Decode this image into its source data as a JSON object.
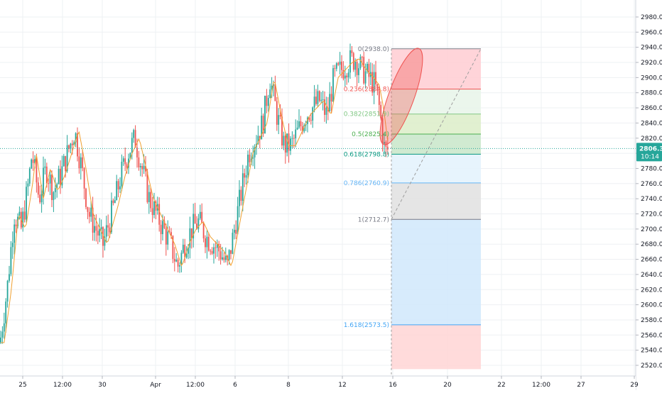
{
  "chart_data": {
    "type": "candlestick",
    "y_axis": {
      "range": [
        2510,
        2990
      ],
      "ticks": [
        2520,
        2540,
        2560,
        2580,
        2600,
        2620,
        2640,
        2660,
        2680,
        2700,
        2720,
        2740,
        2760,
        2780,
        2800,
        2820,
        2840,
        2860,
        2880,
        2900,
        2920,
        2940,
        2960,
        2980
      ],
      "tick_labels": [
        "2520.0",
        "2540.0",
        "2560.0",
        "2580.0",
        "2600.0",
        "2620.0",
        "2640.0",
        "2660.0",
        "2680.0",
        "2700.0",
        "2720.0",
        "2740.0",
        "2760.0",
        "2780.0",
        "2800.0",
        "2820.0",
        "2840.0",
        "2860.0",
        "2880.0",
        "2900.0",
        "2920.0",
        "2940.0",
        "2960.0",
        "2980.0"
      ]
    },
    "x_axis": {
      "labels": [
        "25",
        "12:00",
        "30",
        "Apr",
        "12:00",
        "6",
        "8",
        "12",
        "16",
        "20",
        "22",
        "12:00",
        "27",
        "29"
      ],
      "label_positions": [
        32,
        88,
        144,
        219,
        275,
        331,
        406,
        482,
        553,
        630,
        706,
        762,
        818,
        893
      ]
    },
    "price": {
      "last": "2806.3",
      "countdown": "10:14",
      "color": "#26a69a"
    },
    "colors": {
      "up": "#26a69a",
      "down": "#ef5350",
      "ma": "#f0a030"
    },
    "candles_summary": {
      "path_points": [
        [
          0,
          2550
        ],
        [
          10,
          2620
        ],
        [
          20,
          2720
        ],
        [
          30,
          2700
        ],
        [
          40,
          2760
        ],
        [
          45,
          2800
        ],
        [
          55,
          2740
        ],
        [
          65,
          2780
        ],
        [
          75,
          2750
        ],
        [
          85,
          2770
        ],
        [
          95,
          2800
        ],
        [
          105,
          2830
        ],
        [
          115,
          2780
        ],
        [
          125,
          2720
        ],
        [
          135,
          2700
        ],
        [
          145,
          2680
        ],
        [
          160,
          2730
        ],
        [
          170,
          2770
        ],
        [
          180,
          2800
        ],
        [
          190,
          2820
        ],
        [
          200,
          2780
        ],
        [
          210,
          2740
        ],
        [
          220,
          2720
        ],
        [
          230,
          2700
        ],
        [
          240,
          2680
        ],
        [
          250,
          2650
        ],
        [
          260,
          2680
        ],
        [
          270,
          2700
        ],
        [
          280,
          2710
        ],
        [
          290,
          2690
        ],
        [
          300,
          2680
        ],
        [
          310,
          2670
        ],
        [
          320,
          2650
        ],
        [
          330,
          2700
        ],
        [
          340,
          2750
        ],
        [
          350,
          2800
        ],
        [
          360,
          2820
        ],
        [
          370,
          2840
        ],
        [
          380,
          2900
        ],
        [
          390,
          2850
        ],
        [
          400,
          2810
        ],
        [
          410,
          2810
        ],
        [
          420,
          2830
        ],
        [
          430,
          2850
        ],
        [
          440,
          2860
        ],
        [
          450,
          2870
        ],
        [
          460,
          2850
        ],
        [
          470,
          2900
        ],
        [
          480,
          2910
        ],
        [
          490,
          2920
        ],
        [
          500,
          2925
        ],
        [
          510,
          2910
        ],
        [
          520,
          2900
        ],
        [
          528,
          2890
        ],
        [
          534,
          2860
        ],
        [
          538,
          2830
        ],
        [
          542,
          2800
        ],
        [
          546,
          2805
        ]
      ]
    },
    "fibonacci": {
      "levels": [
        {
          "label": "0(2938.0)",
          "price": 2938.0,
          "color": "#787b86"
        },
        {
          "label": "0.236(2884.8)",
          "price": 2884.8,
          "color": "#ef5350"
        },
        {
          "label": "0.382(2851.9)",
          "price": 2851.9,
          "color": "#81c784"
        },
        {
          "label": "0.5(2825.4)",
          "price": 2825.4,
          "color": "#4caf50"
        },
        {
          "label": "0.618(2798.8)",
          "price": 2798.8,
          "color": "#089981"
        },
        {
          "label": "0.786(2760.9)",
          "price": 2760.9,
          "color": "#64b5f6"
        },
        {
          "label": "1(2712.7)",
          "price": 2712.7,
          "color": "#787b86"
        },
        {
          "label": "1.618(2573.5)",
          "price": 2573.5,
          "color": "#42a5f5"
        }
      ],
      "zones": [
        {
          "from": 2938.0,
          "to": 2884.8,
          "color": "#ffcdd2"
        },
        {
          "from": 2884.8,
          "to": 2851.9,
          "color": "#e8f5e9"
        },
        {
          "from": 2851.9,
          "to": 2825.4,
          "color": "#dcedc8"
        },
        {
          "from": 2825.4,
          "to": 2798.8,
          "color": "#c8e6c9"
        },
        {
          "from": 2798.8,
          "to": 2760.9,
          "color": "#e3f2fd"
        },
        {
          "from": 2760.9,
          "to": 2712.7,
          "color": "#e0e0e0"
        },
        {
          "from": 2712.7,
          "to": 2573.5,
          "color": "#d0e8fb"
        },
        {
          "from": 2573.5,
          "to": 2515,
          "color": "#ffd5d5"
        }
      ]
    }
  }
}
